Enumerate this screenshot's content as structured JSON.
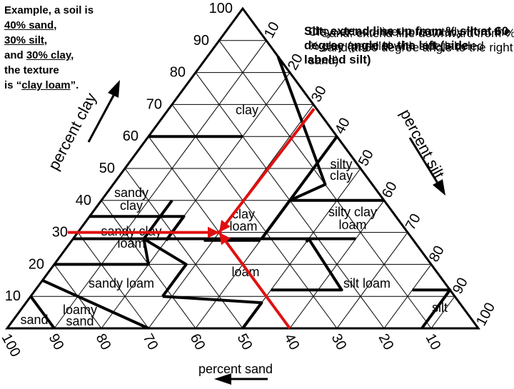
{
  "example_note": {
    "line1": "Example, a soil is",
    "sand": "40% sand",
    "silt": "30% silt",
    "and": "and",
    "clay": "30% clay",
    "line5": "the texture",
    "is": "is",
    "texture": "clay loam",
    "open_quote": "“",
    "close_quote": "”."
  },
  "overlapping_notes": [
    "Silt: extend line up from % silt at 60 degree angle to the left (side labeled silt)",
    "Clay: extend line horizontally from the % clay (parallel with side labeled sand)",
    "Sand: extend line downward from % sand at 60 degree angle to the right"
  ],
  "triangle": {
    "axis_labels": {
      "clay": "percent clay",
      "silt": "percent silt",
      "sand": "percent sand"
    },
    "clay_ticks": [
      "10",
      "20",
      "30",
      "40",
      "50",
      "60",
      "70",
      "80",
      "90",
      "100"
    ],
    "silt_ticks": [
      "10",
      "20",
      "30",
      "40",
      "50",
      "60",
      "70",
      "80",
      "90",
      "100"
    ],
    "sand_ticks": [
      "100",
      "90",
      "80",
      "70",
      "60",
      "50",
      "40",
      "30",
      "20",
      "10"
    ],
    "classes": {
      "clay": "clay",
      "silty_clay_1": "silty",
      "silty_clay_2": "clay",
      "sandy_clay_1": "sandy",
      "sandy_clay_2": "clay",
      "clay_loam_1": "clay",
      "clay_loam_2": "loam",
      "silty_clay_loam_1": "silty clay",
      "silty_clay_loam_2": "loam",
      "sandy_clay_loam_1": "sandy clay",
      "sandy_clay_loam_2": "loam",
      "loam": "loam",
      "sandy_loam": "sandy loam",
      "silt_loam": "silt loam",
      "silt": "silt",
      "sand": "sand",
      "loamy_sand_1": "loamy",
      "loamy_sand_2": "sand"
    }
  },
  "example_reading": {
    "sand": 40,
    "silt": 30,
    "clay": 30
  },
  "colors": {
    "reading_lines": "#e01010",
    "boundaries": "#000000",
    "grid": "#000000"
  }
}
